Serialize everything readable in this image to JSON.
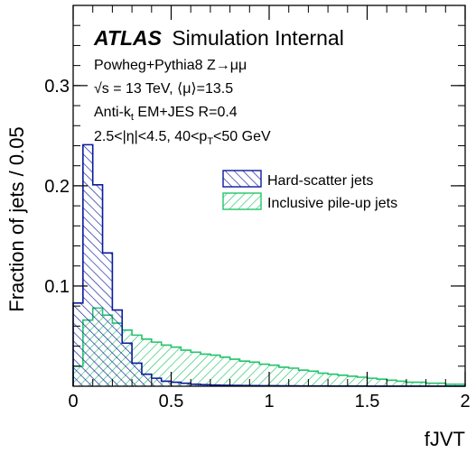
{
  "chart_data": {
    "type": "histogram",
    "title_bold": "ATLAS",
    "title_rest": "Simulation Internal",
    "annotations": [
      "Powheg+Pythia8 Z→μμ",
      "√s = 13 TeV, ⟨μ⟩=13.5",
      "Anti-k",
      "t",
      " EM+JES R=0.4",
      "2.5<|η|<4.5, 40<p",
      "T",
      "<50 GeV"
    ],
    "xlabel": "fJVT",
    "ylabel": "Fraction of jets / 0.05",
    "xlim": [
      0,
      2
    ],
    "ylim": [
      0,
      0.38
    ],
    "xticks": [
      0,
      0.5,
      1,
      1.5,
      2
    ],
    "xtick_labels": [
      "0",
      "0.5",
      "1",
      "1.5",
      "2"
    ],
    "yticks": [
      0.1,
      0.2,
      0.3
    ],
    "ytick_labels": [
      "0.1",
      "0.2",
      "0.3"
    ],
    "bin_width": 0.05,
    "x": [
      0.025,
      0.075,
      0.125,
      0.175,
      0.225,
      0.275,
      0.325,
      0.375,
      0.425,
      0.475,
      0.525,
      0.575,
      0.625,
      0.675,
      0.725,
      0.775,
      0.825,
      0.875,
      0.925,
      0.975,
      1.025,
      1.075,
      1.125,
      1.175,
      1.225,
      1.275,
      1.325,
      1.375,
      1.425,
      1.475,
      1.525,
      1.575,
      1.625,
      1.675,
      1.725,
      1.775,
      1.825,
      1.875,
      1.925,
      1.975
    ],
    "series": [
      {
        "name": "Hard-scatter jets",
        "color": "#0a1a9c",
        "hatch": "backslash",
        "values": [
          0.083,
          0.241,
          0.201,
          0.133,
          0.076,
          0.043,
          0.023,
          0.012,
          0.008,
          0.005,
          0.004,
          0.003,
          0.002,
          0.0015,
          0.0012,
          0.001,
          0.0008,
          0.0007,
          0.0006,
          0.0005,
          0.0005,
          0.0004,
          0.0004,
          0.0003,
          0.0003,
          0.0003,
          0.0002,
          0.0002,
          0.0002,
          0.0002,
          0.0001,
          0.0001,
          0.0001,
          0.0001,
          0.0001,
          0.0001,
          0.0001,
          0.0001,
          0.0001,
          0.0001
        ]
      },
      {
        "name": "Inclusive pile-up jets",
        "color": "#22c46a",
        "hatch": "slash",
        "values": [
          0.02,
          0.066,
          0.078,
          0.071,
          0.063,
          0.056,
          0.051,
          0.047,
          0.044,
          0.041,
          0.039,
          0.036,
          0.034,
          0.032,
          0.031,
          0.029,
          0.027,
          0.025,
          0.024,
          0.022,
          0.021,
          0.019,
          0.018,
          0.016,
          0.015,
          0.013,
          0.012,
          0.011,
          0.01,
          0.009,
          0.008,
          0.007,
          0.006,
          0.005,
          0.004,
          0.004,
          0.003,
          0.003,
          0.002,
          0.002
        ]
      }
    ]
  }
}
